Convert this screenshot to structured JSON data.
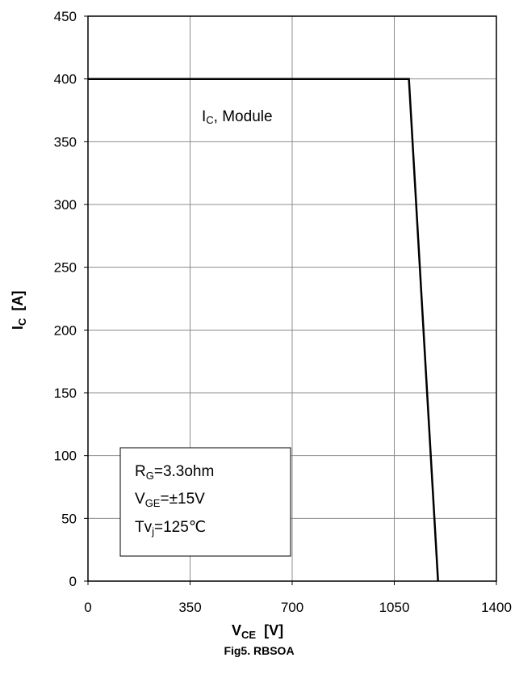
{
  "chart_data": {
    "type": "line",
    "title": "",
    "xlabel": {
      "main": "V",
      "sub": "CE",
      "unit": "[V]"
    },
    "ylabel": {
      "main": "I",
      "sub": "C",
      "unit": "[A]"
    },
    "xlim": [
      0,
      1400
    ],
    "ylim": [
      0,
      450
    ],
    "xticks": [
      0,
      350,
      700,
      1050,
      1400
    ],
    "yticks": [
      0,
      50,
      100,
      150,
      200,
      250,
      300,
      350,
      400,
      450
    ],
    "grid": true,
    "series": [
      {
        "name": "Module",
        "label": {
          "main": "I",
          "sub": "C",
          "rest": ", Module"
        },
        "x": [
          0,
          1100,
          1200
        ],
        "y": [
          400,
          400,
          0
        ]
      }
    ],
    "conditions": [
      {
        "main": "R",
        "sub": "G",
        "rest": "=3.3ohm"
      },
      {
        "main": "V",
        "sub": "GE",
        "rest": "=±15V"
      },
      {
        "main": "Tv",
        "sub": "j",
        "rest": "=125℃"
      }
    ],
    "caption": "Fig5. RBSOA"
  }
}
